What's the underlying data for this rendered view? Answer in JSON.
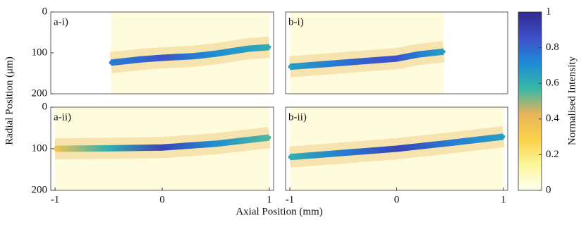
{
  "chart_data": [
    {
      "type": "heatmap",
      "label": "a-i)",
      "xlim": [
        -1.04,
        1.04
      ],
      "ylim": [
        200,
        0
      ],
      "yticks": [
        0,
        100,
        200
      ],
      "x": [
        -0.48,
        -0.2,
        0,
        0.3,
        0.5,
        0.8,
        1.0
      ],
      "values": [
        124,
        116,
        112,
        108,
        102,
        90,
        86
      ],
      "intensity": [
        0.75,
        0.8,
        0.85,
        0.75,
        0.7,
        0.65,
        0.6
      ]
    },
    {
      "type": "heatmap",
      "label": "b-i)",
      "xlim": [
        -1.04,
        1.04
      ],
      "ylim": [
        200,
        0
      ],
      "x": [
        -1.0,
        -0.6,
        -0.3,
        0,
        0.2,
        0.44
      ],
      "values": [
        134,
        126,
        120,
        114,
        104,
        97
      ],
      "intensity": [
        0.65,
        0.75,
        0.82,
        0.85,
        0.75,
        0.65
      ]
    },
    {
      "type": "heatmap",
      "label": "a-ii)",
      "xlim": [
        -1.04,
        1.04
      ],
      "ylim": [
        200,
        0
      ],
      "yticks": [
        0,
        100,
        200
      ],
      "xticks": [
        -1,
        0,
        1
      ],
      "x": [
        -1.0,
        -0.5,
        0,
        0.5,
        1.0
      ],
      "values": [
        100,
        99,
        97,
        88,
        73
      ],
      "intensity": [
        0.35,
        0.6,
        0.9,
        0.7,
        0.55
      ]
    },
    {
      "type": "heatmap",
      "label": "b-ii)",
      "xlim": [
        -1.04,
        1.04
      ],
      "ylim": [
        200,
        0
      ],
      "xticks": [
        -1,
        0,
        1
      ],
      "x": [
        -1.0,
        -0.5,
        0,
        0.5,
        1.0
      ],
      "values": [
        120,
        110,
        100,
        86,
        71
      ],
      "intensity": [
        0.6,
        0.75,
        0.9,
        0.75,
        0.65
      ]
    }
  ],
  "y_label": "Radial Position (μm)",
  "x_label": "Axial Position (mm)",
  "colorbar": {
    "label": "Normalised Intensity",
    "lim": [
      0,
      1
    ],
    "ticks": [
      0,
      0.2,
      0.4,
      0.6,
      0.8,
      1
    ],
    "colormap": [
      "#fffff2",
      "#fbf79a",
      "#f9d24a",
      "#e8b45a",
      "#36b7a6",
      "#1e8bd6",
      "#3f4fc9",
      "#2f2a8e"
    ]
  }
}
